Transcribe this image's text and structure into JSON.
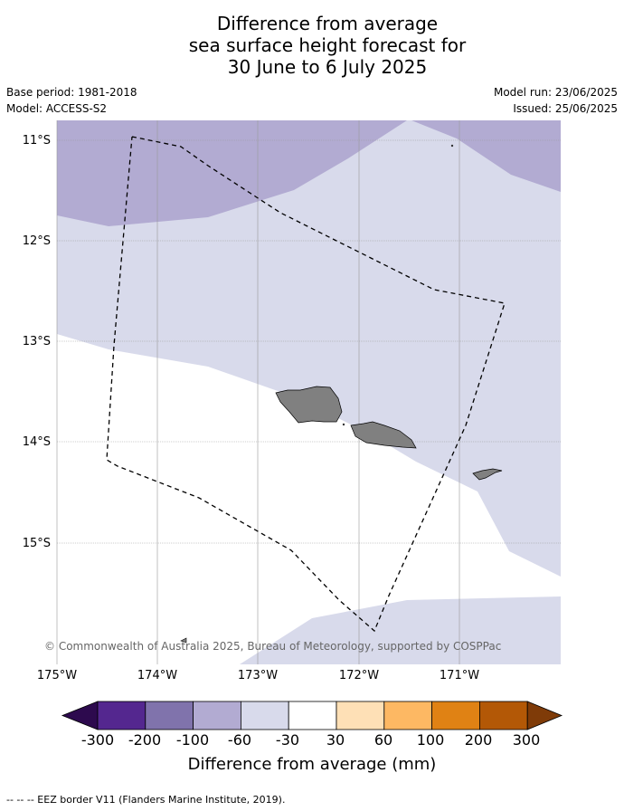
{
  "title_lines": [
    "Difference from average",
    "sea surface height forecast for",
    "30 June to 6 July 2025"
  ],
  "base_period": "Base period: 1981-2018",
  "model": "Model: ACCESS-S2",
  "model_run": "Model run: 23/06/2025",
  "issued": "Issued: 25/06/2025",
  "latitude_labels": [
    "11°S",
    "12°S",
    "13°S",
    "14°S",
    "15°S"
  ],
  "longitude_labels": [
    "175°W",
    "174°W",
    "173°W",
    "172°W",
    "171°W"
  ],
  "copyright": "© Commonwealth of Australia 2025, Bureau of Meteorology, supported by COSPPac",
  "colorbar": {
    "ticks": [
      "-300",
      "-200",
      "-100",
      "-60",
      "-30",
      "30",
      "60",
      "100",
      "200",
      "300"
    ],
    "colors": [
      "#2d0a4e",
      "#54278f",
      "#8073ac",
      "#b2abd2",
      "#d8daeb",
      "#ffffff",
      "#fee0b6",
      "#fdb863",
      "#e08214",
      "#b35806",
      "#7f3b08"
    ],
    "title": "Difference from average (mm)"
  },
  "footer": "-- -- -- EEZ border V11 (Flanders Marine Institute, 2019).",
  "colors": {
    "land": "#808080",
    "category_100": "#b2abd2",
    "category_60": "#d8daeb"
  }
}
